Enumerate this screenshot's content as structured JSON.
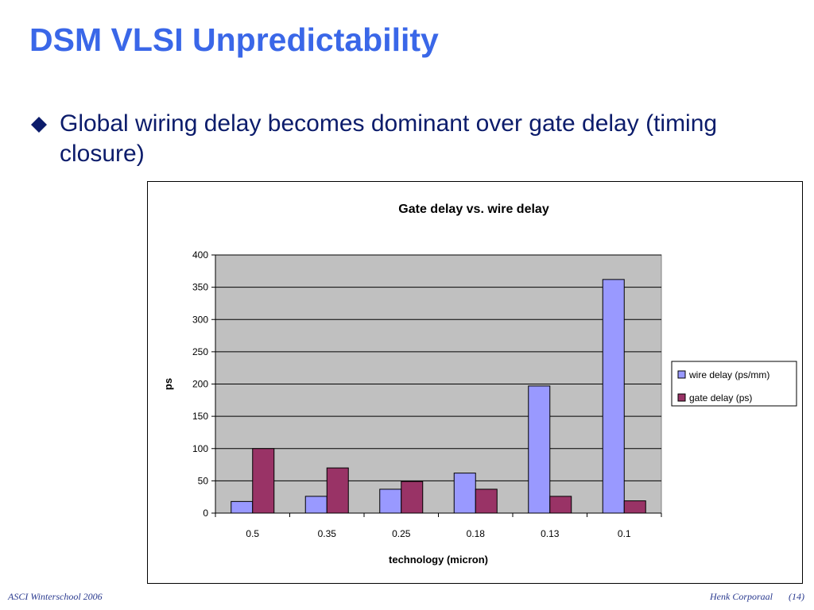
{
  "slide": {
    "title": "DSM VLSI Unpredictability",
    "bullet_text": "Global wiring delay becomes dominant over gate delay (timing closure)",
    "bullet_icon": "diamond-bullet-icon"
  },
  "footer": {
    "left": "ASCI Winterschool 2006",
    "author": "Henk Corporaal",
    "page": "(14)"
  },
  "colors": {
    "title": "#3a67e8",
    "body_text": "#0c1c6b",
    "plot_bg": "#c0c0c0",
    "wire_delay": "#9999ff",
    "gate_delay": "#993366"
  },
  "chart_data": {
    "type": "bar",
    "title": "Gate delay vs. wire delay",
    "xlabel": "technology (micron)",
    "ylabel": "ps",
    "categories": [
      "0.5",
      "0.35",
      "0.25",
      "0.18",
      "0.13",
      "0.1"
    ],
    "ylim": [
      0,
      400
    ],
    "yticks": [
      0,
      50,
      100,
      150,
      200,
      250,
      300,
      350,
      400
    ],
    "grid": true,
    "legend_position": "right",
    "series": [
      {
        "name": "wire delay (ps/mm)",
        "color": "#9999ff",
        "values": [
          18,
          26,
          37,
          62,
          197,
          362
        ]
      },
      {
        "name": "gate delay (ps)",
        "color": "#993366",
        "values": [
          100,
          70,
          49,
          37,
          26,
          19
        ]
      }
    ]
  }
}
